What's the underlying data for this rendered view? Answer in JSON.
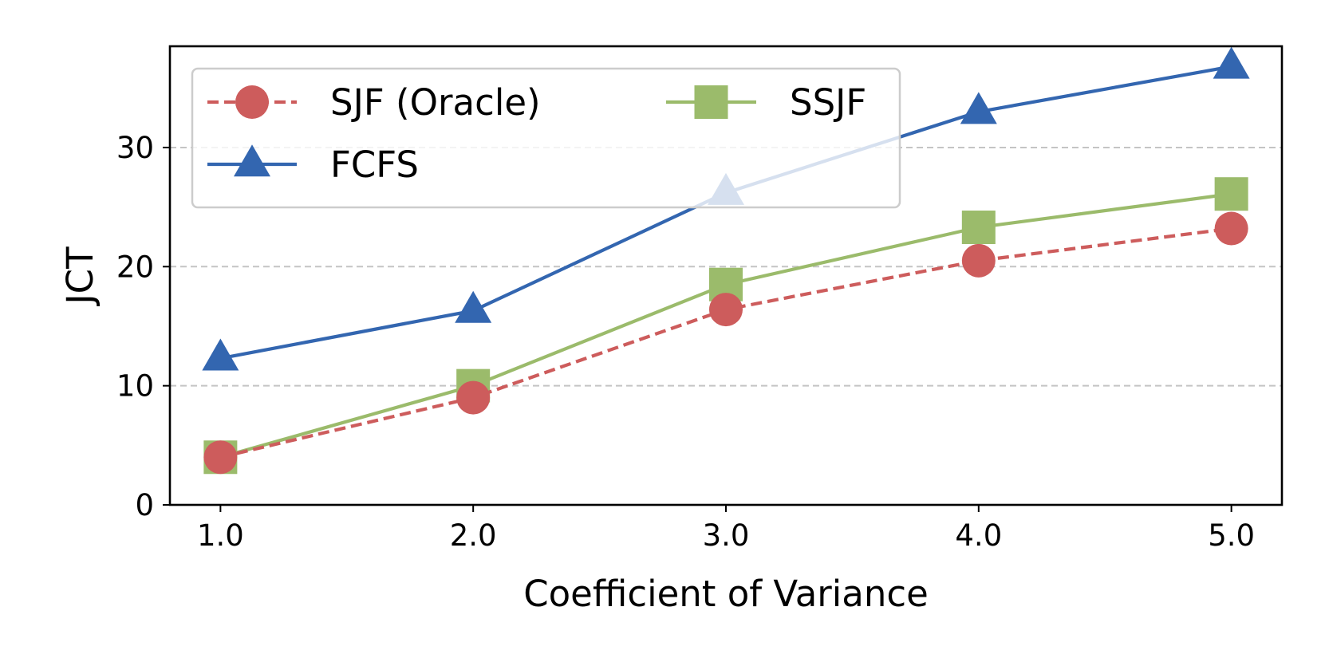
{
  "chart_data": {
    "type": "line",
    "title": "",
    "xlabel": "Coefficient of Variance",
    "ylabel": "JCT",
    "categories": [
      "1.0",
      "2.0",
      "3.0",
      "4.0",
      "5.0"
    ],
    "x": [
      1.0,
      2.0,
      3.0,
      4.0,
      5.0
    ],
    "xlim": [
      0.8,
      5.2
    ],
    "ylim": [
      0,
      38.5
    ],
    "yticks": [
      0,
      10,
      20,
      30
    ],
    "grid": "horizontal dashed",
    "legend_position": "top-left",
    "legend_columns": 2,
    "series": [
      {
        "name": "SJF (Oracle)",
        "values": [
          4.0,
          9.0,
          16.4,
          20.5,
          23.2
        ],
        "color": "#cd5c5c",
        "marker": "circle",
        "linestyle": "dashed"
      },
      {
        "name": "FCFS",
        "values": [
          12.3,
          16.3,
          26.2,
          33.0,
          36.8
        ],
        "color": "#3366b0",
        "marker": "triangle",
        "linestyle": "solid"
      },
      {
        "name": "SSJF",
        "values": [
          4.0,
          10.0,
          18.5,
          23.3,
          26.1
        ],
        "color": "#9bbb6b",
        "marker": "square",
        "linestyle": "solid"
      }
    ]
  }
}
